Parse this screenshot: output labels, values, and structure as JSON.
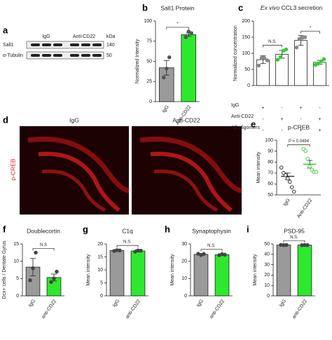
{
  "blot": {
    "panel": "a",
    "lanes": [
      "IgG",
      "Anti-CD22"
    ],
    "unit": "kDa",
    "rows": [
      {
        "name": "Sall1",
        "size": 140
      },
      {
        "name": "α-Tubulin",
        "size": 50
      }
    ]
  },
  "images": {
    "panel": "d",
    "labels": [
      "IgG",
      "Anti-CD22"
    ],
    "stain": "p-CREB"
  },
  "chart_data": [
    {
      "type": "bar",
      "panel": "b",
      "title": "Sall1 Protein",
      "ylabel": "Normalized Intensity",
      "categories": [
        "IgG",
        "Anti-CD22"
      ],
      "values": [
        42,
        83
      ],
      "errors": [
        9,
        2
      ],
      "points": [
        [
          30,
          41,
          55
        ],
        [
          80,
          87,
          85
        ]
      ],
      "colors": [
        "#9a9a9a",
        "#2ee82e"
      ],
      "point_colors": [
        "#555555",
        "#555555"
      ],
      "ylim": [
        0,
        100
      ],
      "yticks": [
        0,
        25,
        50,
        75,
        100
      ],
      "annotations": [
        "*"
      ]
    },
    {
      "type": "bar",
      "panel": "c",
      "title_italic": "Ex vivo",
      "title": "CCL3 secretion",
      "ylabel": "Normalized concentration",
      "categories": [
        null,
        null,
        null,
        null
      ],
      "values": [
        80,
        97,
        140,
        72
      ],
      "errors": [
        12,
        12,
        15,
        6
      ],
      "points": [
        [
          62,
          85,
          85,
          78
        ],
        [
          80,
          88,
          108,
          112
        ],
        [
          118,
          145,
          148,
          150
        ],
        [
          64,
          68,
          75,
          82
        ]
      ],
      "colors": [
        "#ffffff",
        "#ffffff",
        "#ffffff",
        "#ffffff"
      ],
      "point_colors": [
        "#888888",
        "#33cc33",
        "#888888",
        "#33cc33"
      ],
      "ylim": [
        0,
        200
      ],
      "yticks": [
        0,
        50,
        100,
        150,
        200
      ],
      "annotations": [
        "N.S.",
        "*"
      ],
      "conditions": [
        {
          "name": "IgG",
          "signs": [
            "+",
            "-",
            "+",
            "-"
          ]
        },
        {
          "name": "Anti-CD22",
          "signs": [
            "-",
            "+",
            "-",
            "+"
          ]
        },
        {
          "name": "Aβ oligomers",
          "signs": [
            "-",
            "-",
            "+",
            "+"
          ]
        }
      ]
    },
    {
      "type": "dot",
      "panel": "e",
      "title": "p-CREB",
      "ylabel": "Mean intensity",
      "categories": [
        "IgG",
        "Anti-CD22"
      ],
      "values": [
        67,
        78
      ],
      "errors": [
        3,
        3.5
      ],
      "points": [
        [
          75,
          70,
          68,
          65,
          62,
          57,
          53
        ],
        [
          92,
          90,
          83,
          76,
          73,
          71,
          71
        ]
      ],
      "point_colors": [
        "#222222",
        "#33cc33"
      ],
      "ylim": [
        50,
        100
      ],
      "yticks": [
        50,
        60,
        70,
        80,
        90,
        100
      ],
      "annotations": [
        "P = 0.0494"
      ]
    },
    {
      "type": "bar",
      "panel": "f",
      "title": "Doublecortin",
      "ylabel": "Dcx+ cells / Dentate Gyrus",
      "categories": [
        "IgG",
        "anti-CD22"
      ],
      "values": [
        8.3,
        5.3
      ],
      "errors": [
        2.5,
        1
      ],
      "points": [
        [
          4.5,
          8,
          12.5
        ],
        [
          4,
          5,
          7
        ]
      ],
      "colors": [
        "#9a9a9a",
        "#2ee82e"
      ],
      "point_colors": [
        "#444444",
        "#444444"
      ],
      "ylim": [
        0,
        15
      ],
      "yticks": [
        0,
        5,
        10,
        15
      ],
      "annotations": [
        "N.S"
      ]
    },
    {
      "type": "bar",
      "panel": "g",
      "title": "C1q",
      "ylabel": "Mean intensity",
      "categories": [
        "IgG",
        "anti-CD22"
      ],
      "values": [
        17.5,
        17.3
      ],
      "errors": [
        0.3,
        0.4
      ],
      "points": [
        [
          17.3,
          17.6,
          17.5
        ],
        [
          17.0,
          17.5,
          17.4
        ]
      ],
      "colors": [
        "#9a9a9a",
        "#2ee82e"
      ],
      "point_colors": [
        "#444444",
        "#444444"
      ],
      "ylim": [
        0,
        20
      ],
      "yticks": [
        0,
        5,
        10,
        15,
        20
      ],
      "annotations": [
        "N.S."
      ]
    },
    {
      "type": "bar",
      "panel": "h",
      "title": "Synaptophysin",
      "ylabel": "Mean intensity",
      "categories": [
        "IgG",
        "anti-CD22"
      ],
      "values": [
        24,
        23.8
      ],
      "errors": [
        0.5,
        0.4
      ],
      "points": [
        [
          24.3,
          23.6,
          24.2
        ],
        [
          23.5,
          24.1,
          23.8
        ]
      ],
      "colors": [
        "#9a9a9a",
        "#2ee82e"
      ],
      "point_colors": [
        "#444444",
        "#444444"
      ],
      "ylim": [
        0,
        30
      ],
      "yticks": [
        0,
        10,
        20,
        30
      ],
      "annotations": [
        "N.S."
      ]
    },
    {
      "type": "bar",
      "panel": "i",
      "title": "PSD-95",
      "ylabel": "Mean intensity",
      "categories": [
        "IgG",
        "anti-CD22"
      ],
      "values": [
        49,
        48.9
      ],
      "errors": [
        0.2,
        0.2
      ],
      "points": [
        [
          49.1,
          48.9,
          49
        ],
        [
          48.8,
          49,
          48.9
        ]
      ],
      "colors": [
        "#9a9a9a",
        "#2ee82e"
      ],
      "point_colors": [
        "#444444",
        "#444444"
      ],
      "ylim": [
        0,
        50
      ],
      "yticks": [
        0,
        10,
        20,
        30,
        40,
        50
      ],
      "annotations": [
        "N.S."
      ]
    }
  ]
}
